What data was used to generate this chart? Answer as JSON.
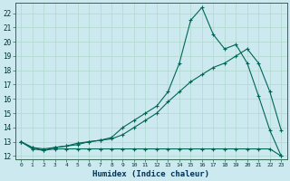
{
  "xlabel": "Humidex (Indice chaleur)",
  "bg_color": "#cde9f0",
  "grid_color": "#b0d8cc",
  "line_color": "#006655",
  "xlim": [
    -0.5,
    23.5
  ],
  "ylim": [
    11.8,
    22.7
  ],
  "x_ticks": [
    0,
    1,
    2,
    3,
    4,
    5,
    6,
    7,
    8,
    9,
    10,
    11,
    12,
    13,
    14,
    15,
    16,
    17,
    18,
    19,
    20,
    21,
    22,
    23
  ],
  "y_ticks": [
    12,
    13,
    14,
    15,
    16,
    17,
    18,
    19,
    20,
    21,
    22
  ],
  "line1_x": [
    0,
    1,
    2,
    3,
    4,
    5,
    6,
    7,
    8,
    9,
    10,
    11,
    12,
    13,
    14,
    15,
    16,
    17,
    18,
    19,
    20,
    21,
    22,
    23
  ],
  "line1_y": [
    13.0,
    12.5,
    12.4,
    12.5,
    12.5,
    12.5,
    12.5,
    12.5,
    12.5,
    12.5,
    12.5,
    12.5,
    12.5,
    12.5,
    12.5,
    12.5,
    12.5,
    12.5,
    12.5,
    12.5,
    12.5,
    12.5,
    12.5,
    12.0
  ],
  "line2_x": [
    0,
    1,
    2,
    3,
    4,
    5,
    6,
    7,
    8,
    9,
    10,
    11,
    12,
    13,
    14,
    15,
    16,
    17,
    18,
    19,
    20,
    21,
    22,
    23
  ],
  "line2_y": [
    13.0,
    12.6,
    12.5,
    12.6,
    12.7,
    12.8,
    13.0,
    13.1,
    13.2,
    13.5,
    14.0,
    14.5,
    15.0,
    15.8,
    16.5,
    17.2,
    17.7,
    18.2,
    18.5,
    19.0,
    19.5,
    18.5,
    16.5,
    13.8
  ],
  "line3_x": [
    0,
    1,
    2,
    3,
    4,
    5,
    6,
    7,
    8,
    9,
    10,
    11,
    12,
    13,
    14,
    15,
    16,
    17,
    18,
    19,
    20,
    21,
    22,
    23
  ],
  "line3_y": [
    13.0,
    12.6,
    12.4,
    12.6,
    12.7,
    12.9,
    13.0,
    13.1,
    13.3,
    14.0,
    14.5,
    15.0,
    15.5,
    16.5,
    18.5,
    21.5,
    22.4,
    20.5,
    19.5,
    19.8,
    18.5,
    16.2,
    13.8,
    12.0
  ]
}
